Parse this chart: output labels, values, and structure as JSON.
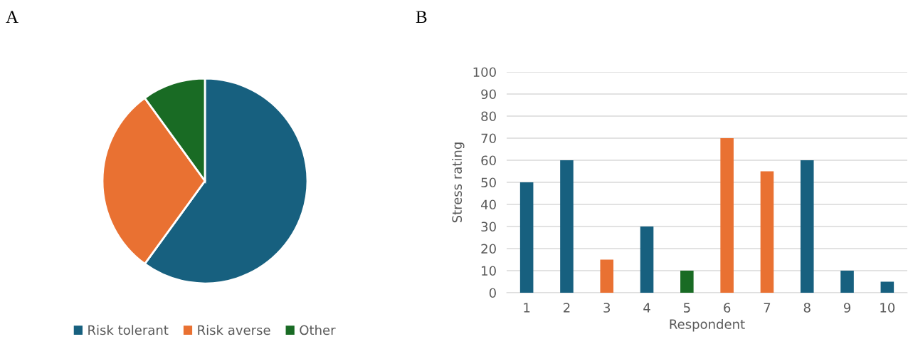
{
  "chart_data": [
    {
      "type": "pie",
      "annotations": [
        "A"
      ],
      "categories": [
        "Risk tolerant",
        "Risk averse",
        "Other"
      ],
      "values": [
        60,
        30,
        10
      ],
      "colors": [
        "#17607f",
        "#e97132",
        "#196b24"
      ],
      "legend": "bottom"
    },
    {
      "type": "bar",
      "annotations": [
        "B"
      ],
      "xlabel": "Respondent",
      "ylabel": "Stress rating",
      "categories": [
        "1",
        "2",
        "3",
        "4",
        "5",
        "6",
        "7",
        "8",
        "9",
        "10"
      ],
      "values": [
        50,
        60,
        15,
        30,
        10,
        70,
        55,
        60,
        10,
        5
      ],
      "colors": [
        "#17607f",
        "#17607f",
        "#e97132",
        "#17607f",
        "#196b24",
        "#e97132",
        "#e97132",
        "#17607f",
        "#17607f",
        "#17607f"
      ],
      "ylim": [
        0,
        100
      ],
      "yticks": [
        0,
        10,
        20,
        30,
        40,
        50,
        60,
        70,
        80,
        90,
        100
      ],
      "grid": "y"
    }
  ]
}
